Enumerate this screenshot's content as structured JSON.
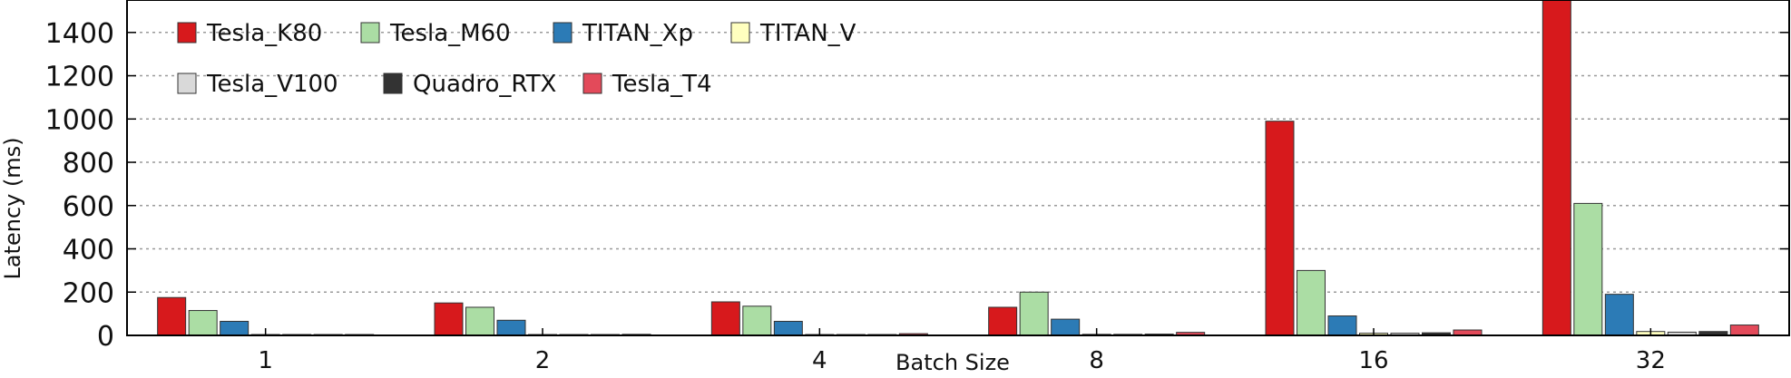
{
  "chart_data": {
    "type": "bar",
    "title": "",
    "xlabel": "Batch Size",
    "ylabel": "Latency (ms)",
    "ylim": [
      0,
      1550
    ],
    "yticks": [
      0,
      200,
      400,
      600,
      800,
      1000,
      1200,
      1400
    ],
    "grid": "horizontal-dotted",
    "legend_position": "top-left",
    "categories": [
      "1",
      "2",
      "4",
      "8",
      "16",
      "32"
    ],
    "series": [
      {
        "name": "Tesla_K80",
        "color": "#d7191c",
        "values": [
          175,
          150,
          155,
          130,
          990,
          1550
        ]
      },
      {
        "name": "Tesla_M60",
        "color": "#abdda4",
        "values": [
          115,
          130,
          135,
          200,
          300,
          610
        ]
      },
      {
        "name": "TITAN_Xp",
        "color": "#2c7bb6",
        "values": [
          65,
          70,
          65,
          75,
          90,
          190
        ]
      },
      {
        "name": "TITAN_V",
        "color": "#ffffbf",
        "values": [
          2,
          2,
          4,
          5,
          10,
          18
        ]
      },
      {
        "name": "Tesla_V100",
        "color": "#d9d9d9",
        "values": [
          2,
          2,
          4,
          5,
          10,
          15
        ]
      },
      {
        "name": "Quadro_RTX",
        "color": "#333333",
        "values": [
          2,
          2,
          4,
          6,
          12,
          18
        ]
      },
      {
        "name": "Tesla_T4",
        "color": "#e34a5a",
        "values": [
          4,
          5,
          8,
          14,
          25,
          48
        ]
      }
    ]
  }
}
